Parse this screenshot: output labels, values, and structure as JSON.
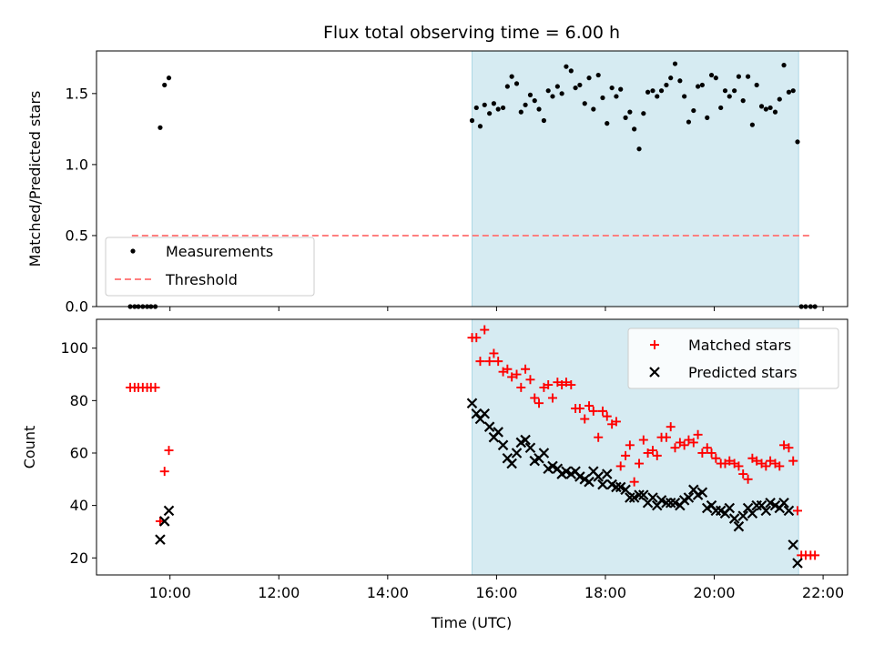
{
  "title": "Flux total observing time = 6.00 h",
  "xlabel": "Time (UTC)",
  "x_tick_labels": [
    "10:00",
    "12:00",
    "14:00",
    "16:00",
    "18:00",
    "20:00",
    "22:00"
  ],
  "colors": {
    "span": "#add8e6",
    "measurement": "#000000",
    "threshold": "#ff7f7f",
    "matched": "#ff0000",
    "predicted": "#000000"
  },
  "chart_data": [
    {
      "type": "scatter",
      "ylabel": "Matched/Predicted stars",
      "xlim": [
        8.65,
        22.45
      ],
      "ylim": [
        0,
        1.8
      ],
      "y_ticks": [
        0.0,
        0.5,
        1.0,
        1.5
      ],
      "y_tick_labels": [
        "0.0",
        "0.5",
        "1.0",
        "1.5"
      ],
      "legend_position": "lower-left",
      "shaded_interval": [
        15.55,
        21.55
      ],
      "threshold": {
        "name": "Threshold",
        "y": 0.5,
        "x": [
          9.3,
          21.8
        ]
      },
      "series": [
        {
          "name": "Measurements",
          "x": [
            9.27,
            9.35,
            9.42,
            9.5,
            9.58,
            9.65,
            9.73,
            9.82,
            9.9,
            9.98,
            15.55,
            15.63,
            15.7,
            15.78,
            15.87,
            15.95,
            16.03,
            16.12,
            16.2,
            16.28,
            16.37,
            16.45,
            16.53,
            16.62,
            16.7,
            16.78,
            16.87,
            16.95,
            17.03,
            17.12,
            17.2,
            17.28,
            17.37,
            17.45,
            17.53,
            17.62,
            17.7,
            17.78,
            17.87,
            17.95,
            18.03,
            18.12,
            18.2,
            18.28,
            18.37,
            18.45,
            18.53,
            18.62,
            18.7,
            18.78,
            18.87,
            18.95,
            19.03,
            19.12,
            19.2,
            19.28,
            19.37,
            19.45,
            19.53,
            19.62,
            19.7,
            19.78,
            19.87,
            19.95,
            20.03,
            20.12,
            20.2,
            20.28,
            20.37,
            20.45,
            20.53,
            20.62,
            20.7,
            20.78,
            20.87,
            20.95,
            21.03,
            21.12,
            21.2,
            21.28,
            21.37,
            21.45,
            21.53,
            21.6,
            21.68,
            21.77,
            21.85
          ],
          "y": [
            0,
            0,
            0,
            0,
            0,
            0,
            0,
            1.26,
            1.56,
            1.61,
            1.31,
            1.4,
            1.27,
            1.42,
            1.36,
            1.43,
            1.39,
            1.4,
            1.55,
            1.62,
            1.57,
            1.37,
            1.42,
            1.49,
            1.45,
            1.39,
            1.31,
            1.52,
            1.48,
            1.55,
            1.5,
            1.69,
            1.66,
            1.54,
            1.56,
            1.43,
            1.61,
            1.39,
            1.63,
            1.47,
            1.29,
            1.54,
            1.48,
            1.53,
            1.33,
            1.37,
            1.25,
            1.11,
            1.36,
            1.51,
            1.52,
            1.48,
            1.52,
            1.56,
            1.61,
            1.71,
            1.59,
            1.48,
            1.3,
            1.38,
            1.55,
            1.56,
            1.33,
            1.63,
            1.61,
            1.4,
            1.52,
            1.48,
            1.52,
            1.62,
            1.45,
            1.62,
            1.28,
            1.56,
            1.41,
            1.39,
            1.4,
            1.37,
            1.46,
            1.7,
            1.51,
            1.52,
            1.16,
            0,
            0,
            0,
            0
          ]
        }
      ]
    },
    {
      "type": "scatter",
      "ylabel": "Count",
      "xlabel": "Time (UTC)",
      "xlim": [
        8.65,
        22.45
      ],
      "ylim": [
        13.5,
        111
      ],
      "y_ticks": [
        20,
        40,
        60,
        80,
        100
      ],
      "y_tick_labels": [
        "20",
        "40",
        "60",
        "80",
        "100"
      ],
      "legend_position": "upper-right",
      "shaded_interval": [
        15.55,
        21.55
      ],
      "series": [
        {
          "name": "Matched stars",
          "marker": "plus",
          "x": [
            9.27,
            9.35,
            9.42,
            9.5,
            9.58,
            9.65,
            9.73,
            9.82,
            9.9,
            9.98,
            15.55,
            15.63,
            15.7,
            15.78,
            15.87,
            15.95,
            16.03,
            16.12,
            16.2,
            16.28,
            16.37,
            16.45,
            16.53,
            16.62,
            16.7,
            16.78,
            16.87,
            16.95,
            17.03,
            17.12,
            17.2,
            17.28,
            17.37,
            17.45,
            17.53,
            17.62,
            17.7,
            17.78,
            17.87,
            17.95,
            18.03,
            18.12,
            18.2,
            18.28,
            18.37,
            18.45,
            18.53,
            18.62,
            18.7,
            18.78,
            18.87,
            18.95,
            19.03,
            19.12,
            19.2,
            19.28,
            19.37,
            19.45,
            19.53,
            19.62,
            19.7,
            19.78,
            19.87,
            19.95,
            20.03,
            20.12,
            20.2,
            20.28,
            20.37,
            20.45,
            20.53,
            20.62,
            20.7,
            20.78,
            20.87,
            20.95,
            21.03,
            21.12,
            21.2,
            21.28,
            21.37,
            21.45,
            21.53,
            21.6,
            21.68,
            21.77,
            21.85
          ],
          "y": [
            85,
            85,
            85,
            85,
            85,
            85,
            85,
            34,
            53,
            61,
            104,
            104,
            95,
            107,
            95,
            98,
            95,
            91,
            92,
            89,
            90,
            85,
            92,
            88,
            81,
            79,
            85,
            86,
            81,
            87,
            86,
            87,
            86,
            77,
            77,
            73,
            78,
            76,
            66,
            76,
            74,
            71,
            72,
            55,
            59,
            63,
            49,
            56,
            65,
            60,
            61,
            59,
            66,
            66,
            70,
            62,
            64,
            63,
            65,
            64,
            67,
            60,
            62,
            60,
            58,
            56,
            56,
            57,
            56,
            55,
            52,
            50,
            58,
            57,
            56,
            55,
            57,
            56,
            55,
            63,
            62,
            57,
            38,
            21,
            21,
            21,
            21
          ]
        },
        {
          "name": "Predicted stars",
          "marker": "x",
          "x": [
            9.82,
            9.9,
            9.98,
            15.55,
            15.63,
            15.7,
            15.78,
            15.87,
            15.95,
            16.03,
            16.12,
            16.2,
            16.28,
            16.37,
            16.45,
            16.53,
            16.62,
            16.7,
            16.78,
            16.87,
            16.95,
            17.03,
            17.12,
            17.2,
            17.28,
            17.37,
            17.45,
            17.53,
            17.62,
            17.7,
            17.78,
            17.87,
            17.95,
            18.03,
            18.12,
            18.2,
            18.28,
            18.37,
            18.45,
            18.53,
            18.62,
            18.7,
            18.78,
            18.87,
            18.95,
            19.03,
            19.12,
            19.2,
            19.28,
            19.37,
            19.45,
            19.53,
            19.62,
            19.7,
            19.78,
            19.87,
            19.95,
            20.03,
            20.12,
            20.2,
            20.28,
            20.37,
            20.45,
            20.53,
            20.62,
            20.7,
            20.78,
            20.87,
            20.95,
            21.03,
            21.12,
            21.2,
            21.28,
            21.37,
            21.45,
            21.53
          ],
          "y": [
            27,
            34,
            38,
            79,
            75,
            73,
            75,
            70,
            66,
            68,
            63,
            58,
            56,
            60,
            64,
            65,
            62,
            57,
            58,
            60,
            54,
            55,
            54,
            52,
            53,
            52,
            53,
            51,
            50,
            49,
            53,
            51,
            48,
            52,
            48,
            47,
            47,
            46,
            43,
            43,
            44,
            44,
            41,
            43,
            40,
            42,
            41,
            41,
            41,
            40,
            42,
            43,
            46,
            44,
            45,
            39,
            40,
            38,
            38,
            37,
            39,
            35,
            32,
            36,
            39,
            37,
            40,
            40,
            38,
            41,
            40,
            39,
            41,
            38,
            25,
            18
          ]
        }
      ]
    }
  ]
}
